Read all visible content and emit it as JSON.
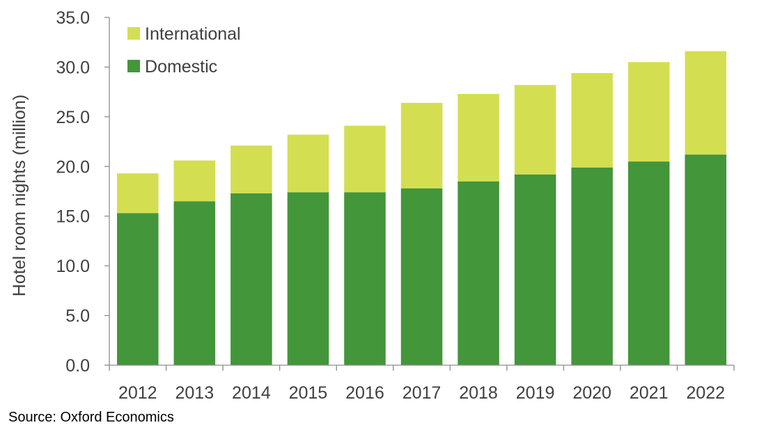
{
  "chart_data": {
    "type": "bar",
    "stacked": true,
    "categories": [
      "2012",
      "2013",
      "2014",
      "2015",
      "2016",
      "2017",
      "2018",
      "2019",
      "2020",
      "2021",
      "2022"
    ],
    "series": [
      {
        "name": "Domestic",
        "color": "#43963a",
        "values": [
          15.3,
          16.5,
          17.3,
          17.4,
          17.4,
          17.8,
          18.5,
          19.2,
          19.9,
          20.5,
          21.2
        ]
      },
      {
        "name": "International",
        "color": "#d3df51",
        "values": [
          4.0,
          4.1,
          4.8,
          5.8,
          6.7,
          8.6,
          8.8,
          9.0,
          9.5,
          10.0,
          10.4
        ]
      }
    ],
    "y_ticks": [
      "0.0",
      "5.0",
      "10.0",
      "15.0",
      "20.0",
      "25.0",
      "30.0",
      "35.0"
    ],
    "ylim": [
      0,
      35
    ],
    "ylabel": "Hotel room nights (million)",
    "xlabel": "",
    "grid": false,
    "legend_position": "top-left"
  },
  "source_note": "Source: Oxford Economics"
}
